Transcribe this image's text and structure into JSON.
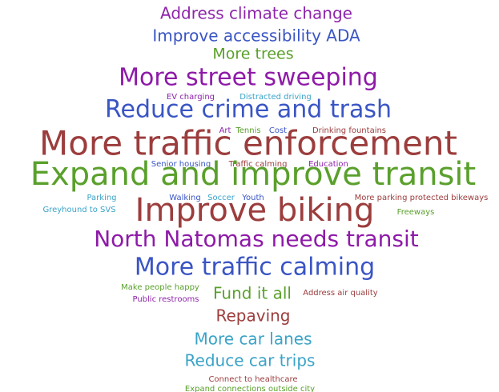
{
  "chart_data": {
    "type": "wordcloud",
    "words": [
      "Address climate change",
      "Improve accessibility ADA",
      "More trees",
      "More street sweeping",
      "EV charging",
      "Distracted driving",
      "Reduce crime and trash",
      "Art",
      "Tennis",
      "Cost",
      "Drinking fountains",
      "More traffic enforcement",
      "Senior housing",
      "Traffic calming",
      "Education",
      "Expand and improve transit",
      "Parking",
      "Walking",
      "Soccer",
      "Youth",
      "More parking protected bikeways",
      "Greyhound to SVS",
      "Improve biking",
      "Freeways",
      "North Natomas needs transit",
      "More traffic calming",
      "Make people happy",
      "Public restrooms",
      "Fund it all",
      "Address air quality",
      "Repaving",
      "More car lanes",
      "Reduce car trips",
      "Connect to healthcare",
      "Expand connections outside city"
    ],
    "values": [
      20,
      20,
      19,
      30,
      10,
      10,
      30,
      10,
      10,
      10,
      10,
      42,
      10,
      10,
      10,
      40,
      10,
      10,
      10,
      10,
      10,
      10,
      40,
      10,
      28,
      30,
      10,
      10,
      20,
      10,
      20,
      20,
      20,
      10,
      10
    ],
    "colors": [
      "#8e24aa",
      "#3a55c4",
      "#5aa02c",
      "#8e1aa8",
      "#8e24aa",
      "#3aa3c8",
      "#3a55c4",
      "#8e24aa",
      "#5aa02c",
      "#3a55c4",
      "#9c3d3d",
      "#9c3d3d",
      "#3a55c4",
      "#9c3d3d",
      "#8e24aa",
      "#5aa02c",
      "#3aa3c8",
      "#3a55c4",
      "#3aa3c8",
      "#3a55c4",
      "#9c3d3d",
      "#3aa3c8",
      "#9c3d3d",
      "#5aa02c",
      "#8e1aa8",
      "#3a55c4",
      "#5aa02c",
      "#8e24aa",
      "#5aa02c",
      "#9c3d3d",
      "#9c3d3d",
      "#3aa3c8",
      "#3aa3c8",
      "#9c3d3d",
      "#5aa02c"
    ]
  }
}
